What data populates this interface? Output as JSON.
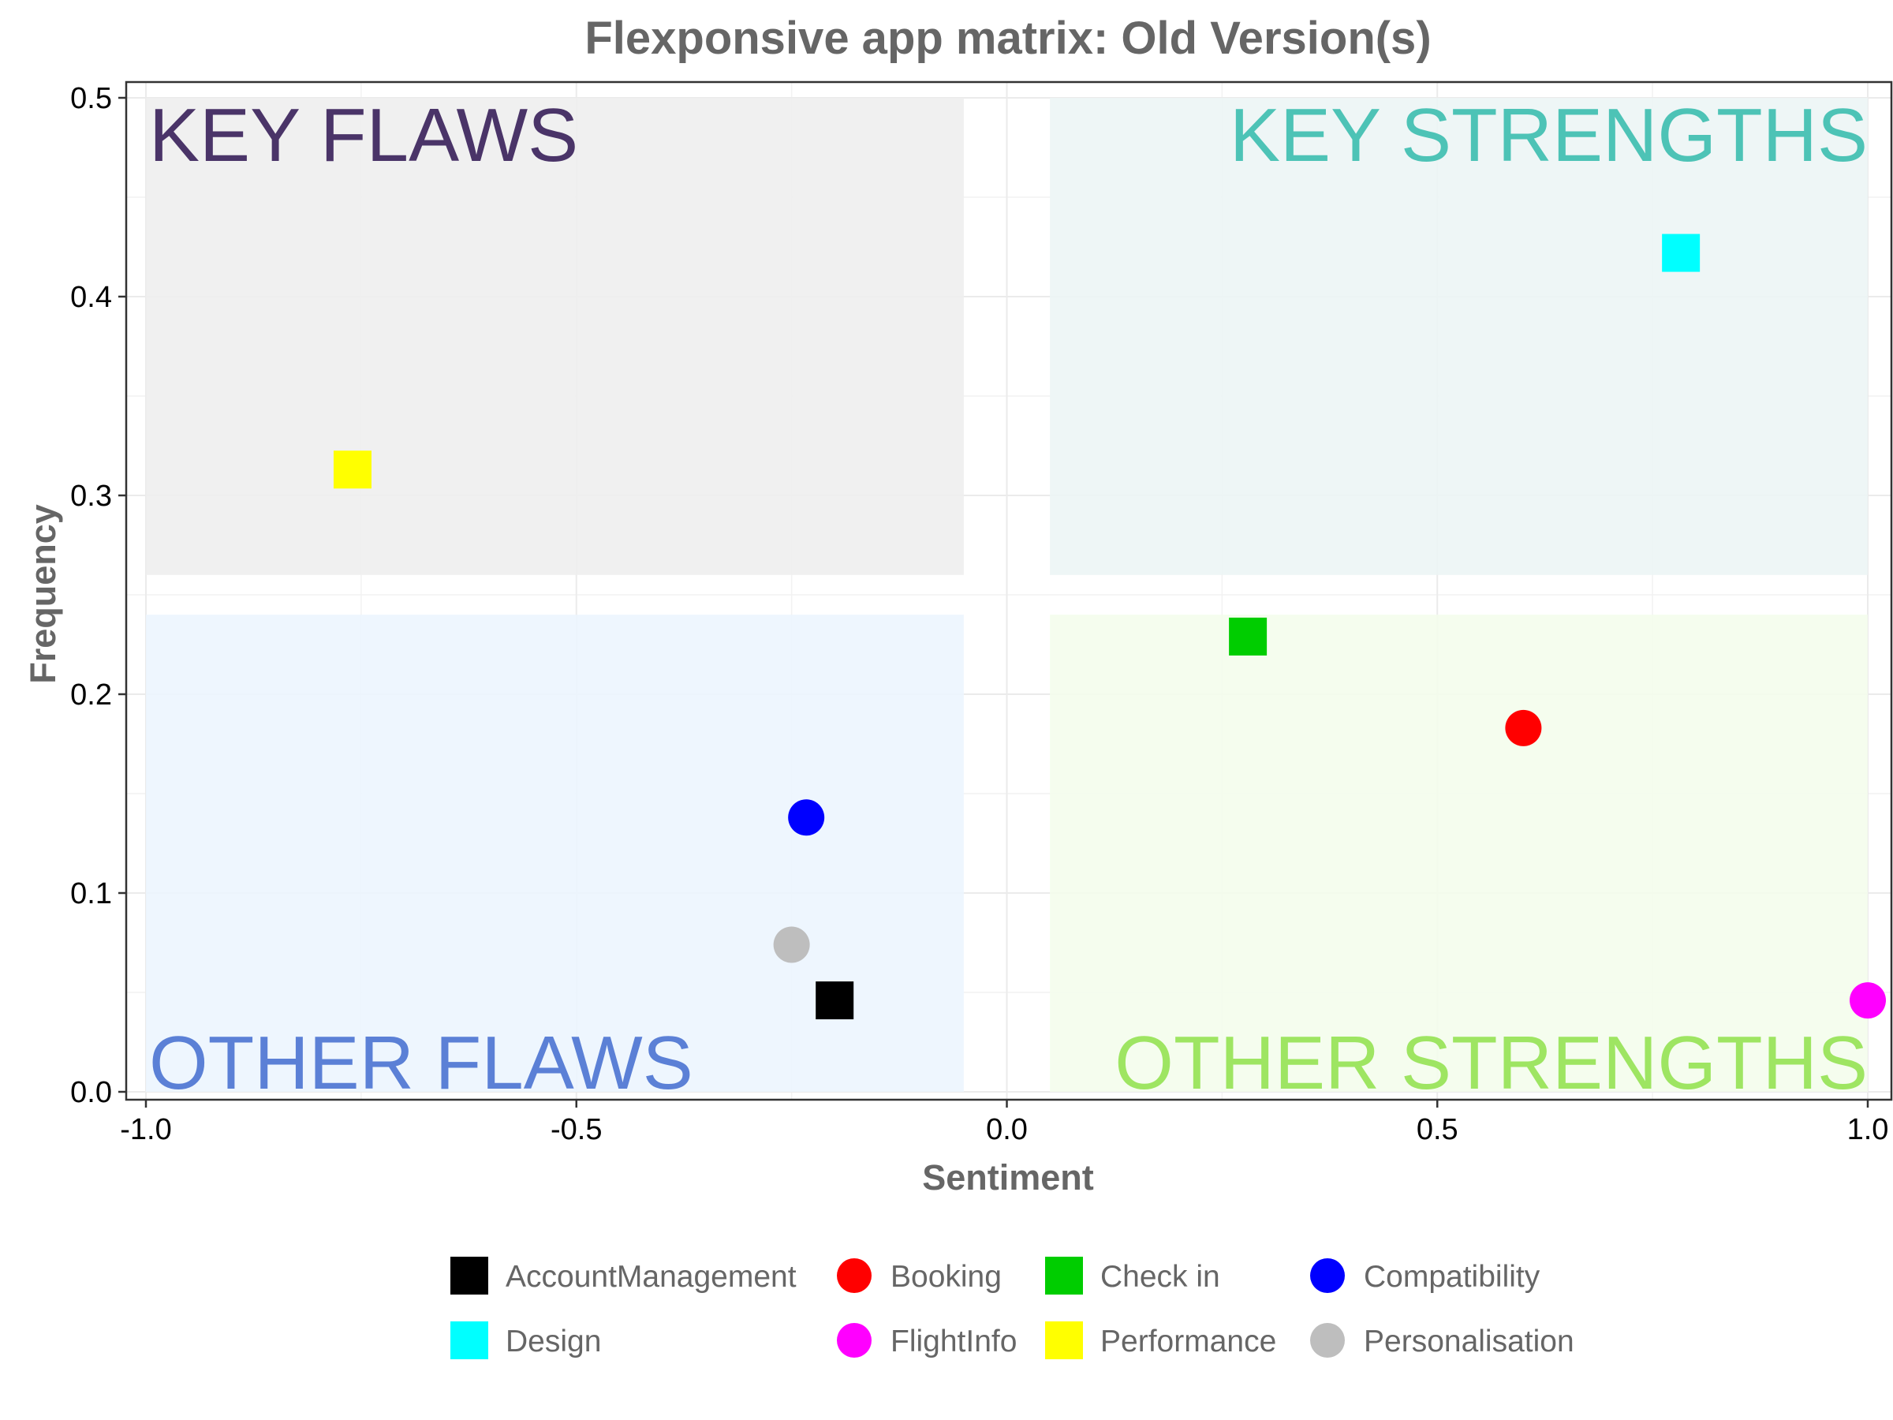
{
  "chart_data": {
    "type": "scatter",
    "title": "Flexponsive app matrix: Old Version(s)",
    "xlabel": "Sentiment",
    "ylabel": "Frequency",
    "xlim": [
      -1.0,
      1.0
    ],
    "ylim": [
      0.0,
      0.5
    ],
    "xticks": [
      "-1.0",
      "-0.5",
      "0.0",
      "0.5",
      "1.0"
    ],
    "yticks": [
      "0.0",
      "0.1",
      "0.2",
      "0.3",
      "0.4",
      "0.5"
    ],
    "grid": true,
    "legend_position": "bottom",
    "quadrants": [
      {
        "label": "KEY FLAWS",
        "x_range": [
          -1.0,
          -0.05
        ],
        "y_range": [
          0.26,
          0.5
        ],
        "fill": "#eeeeee",
        "text_color": "#4a3468",
        "anchor": "top-left"
      },
      {
        "label": "KEY STRENGTHS",
        "x_range": [
          0.05,
          1.0
        ],
        "y_range": [
          0.26,
          0.5
        ],
        "fill": "#ecf5f5",
        "text_color": "#4dc3b6",
        "anchor": "top-right"
      },
      {
        "label": "OTHER FLAWS",
        "x_range": [
          -1.0,
          -0.05
        ],
        "y_range": [
          0.0,
          0.24
        ],
        "fill": "#ecf5fe",
        "text_color": "#5b80d6",
        "anchor": "bottom-left"
      },
      {
        "label": "OTHER STRENGTHS",
        "x_range": [
          0.05,
          1.0
        ],
        "y_range": [
          0.0,
          0.24
        ],
        "fill": "#f4fdec",
        "text_color": "#9ee562",
        "anchor": "bottom-right"
      }
    ],
    "points": [
      {
        "name": "AccountManagement",
        "x": -0.2,
        "y": 0.046,
        "shape": "square",
        "color": "#000000"
      },
      {
        "name": "Booking",
        "x": 0.6,
        "y": 0.183,
        "shape": "circle",
        "color": "#ff0000"
      },
      {
        "name": "Check in",
        "x": 0.28,
        "y": 0.229,
        "shape": "square",
        "color": "#00cd00"
      },
      {
        "name": "Compatibility",
        "x": -0.233,
        "y": 0.138,
        "shape": "circle",
        "color": "#0000ff"
      },
      {
        "name": "Design",
        "x": 0.783,
        "y": 0.422,
        "shape": "square",
        "color": "#00ffff"
      },
      {
        "name": "FlightInfo",
        "x": 1.0,
        "y": 0.046,
        "shape": "circle",
        "color": "#ff00ff"
      },
      {
        "name": "Performance",
        "x": -0.76,
        "y": 0.313,
        "shape": "square",
        "color": "#ffff00"
      },
      {
        "name": "Personalisation",
        "x": -0.25,
        "y": 0.074,
        "shape": "circle",
        "color": "#bebebe"
      }
    ]
  }
}
